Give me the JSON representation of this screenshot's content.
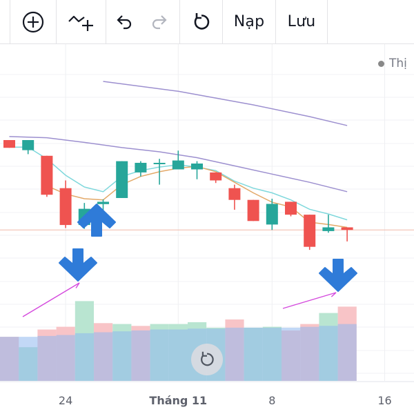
{
  "toolbar": {
    "load_label": "Nạp",
    "save_label": "Lưu"
  },
  "legend": {
    "label": "Thị"
  },
  "colors": {
    "up": "#26a69a",
    "down": "#ef5350",
    "ma_slow": "#9c8fcf",
    "ma_mid": "#7fd8dc",
    "ma_fast": "#e3a867",
    "vol_up": "#b9e5d1",
    "vol_down": "#f8c4c7",
    "vol_avg": "#8fb8ee",
    "arrow": "#2f7bd8",
    "annotation": "#d448dd"
  },
  "chart_data": {
    "type": "candlestick",
    "x_ticks": [
      {
        "label": "24",
        "bar": 3
      },
      {
        "label": "Tháng 11",
        "bar": 9,
        "bold": true
      },
      {
        "label": "8",
        "bar": 14
      },
      {
        "label": "16",
        "bar": 20
      }
    ],
    "y_range": [
      0,
      100
    ],
    "candles": [
      {
        "o": 75.0,
        "h": 75.0,
        "l": 71.7,
        "c": 71.7
      },
      {
        "o": 70.7,
        "h": 75.0,
        "l": 69.0,
        "c": 75.0
      },
      {
        "o": 68.3,
        "h": 68.3,
        "l": 50.8,
        "c": 51.7
      },
      {
        "o": 54.5,
        "h": 57.8,
        "l": 37.5,
        "c": 38.8
      },
      {
        "o": 38.8,
        "h": 48.2,
        "l": 37.2,
        "c": 45.7
      },
      {
        "o": 47.7,
        "h": 49.7,
        "l": 44.0,
        "c": 48.7
      },
      {
        "o": 50.3,
        "h": 66.0,
        "l": 50.3,
        "c": 66.0
      },
      {
        "o": 61.2,
        "h": 66.0,
        "l": 59.5,
        "c": 65.3
      },
      {
        "o": 65.3,
        "h": 67.0,
        "l": 56.0,
        "c": 65.3
      },
      {
        "o": 62.5,
        "h": 70.5,
        "l": 62.5,
        "c": 66.3
      },
      {
        "o": 62.5,
        "h": 66.0,
        "l": 58.3,
        "c": 65.0
      },
      {
        "o": 61.2,
        "h": 61.2,
        "l": 56.7,
        "c": 57.8
      },
      {
        "o": 54.5,
        "h": 56.0,
        "l": 45.3,
        "c": 49.5
      },
      {
        "o": 49.5,
        "h": 49.5,
        "l": 40.5,
        "c": 40.5
      },
      {
        "o": 39.0,
        "h": 50.0,
        "l": 36.7,
        "c": 47.8
      },
      {
        "o": 48.7,
        "h": 48.7,
        "l": 42.5,
        "c": 43.2
      },
      {
        "o": 43.2,
        "h": 43.2,
        "l": 28.2,
        "c": 29.5
      },
      {
        "o": 36.2,
        "h": 43.2,
        "l": 35.5,
        "c": 37.8
      },
      {
        "o": 37.8,
        "h": 37.8,
        "l": 31.8,
        "c": 36.7
      }
    ],
    "ma_slow": [
      null,
      null,
      null,
      null,
      null,
      null,
      null,
      null,
      null,
      null,
      null,
      null,
      null,
      null,
      null,
      null,
      null,
      null,
      null
    ],
    "ma_slow_line": [
      {
        "bar": 5.0,
        "v": 100.0
      },
      {
        "bar": 9.0,
        "v": 95.8
      },
      {
        "bar": 13.0,
        "v": 90.0
      },
      {
        "bar": 16.0,
        "v": 85.0
      },
      {
        "bar": 18.0,
        "v": 81.2
      }
    ],
    "ma_slow2_line": [
      {
        "bar": 0.0,
        "v": 76.5
      },
      {
        "bar": 2.0,
        "v": 76.0
      },
      {
        "bar": 4.0,
        "v": 74.0
      },
      {
        "bar": 6.0,
        "v": 71.8
      },
      {
        "bar": 8.0,
        "v": 70.0
      },
      {
        "bar": 10.0,
        "v": 67.5
      },
      {
        "bar": 12.0,
        "v": 64.0
      },
      {
        "bar": 14.0,
        "v": 60.5
      },
      {
        "bar": 16.0,
        "v": 57.0
      },
      {
        "bar": 18.0,
        "v": 53.0
      }
    ],
    "ma_mid_line": [
      {
        "bar": 0.0,
        "v": 72.0
      },
      {
        "bar": 1.0,
        "v": 72.0
      },
      {
        "bar": 2.0,
        "v": 67.0
      },
      {
        "bar": 3.0,
        "v": 60.0
      },
      {
        "bar": 4.0,
        "v": 55.0
      },
      {
        "bar": 5.0,
        "v": 53.0
      },
      {
        "bar": 6.0,
        "v": 59.5
      },
      {
        "bar": 7.0,
        "v": 62.0
      },
      {
        "bar": 8.0,
        "v": 63.5
      },
      {
        "bar": 9.0,
        "v": 64.5
      },
      {
        "bar": 10.0,
        "v": 63.5
      },
      {
        "bar": 11.0,
        "v": 62.0
      },
      {
        "bar": 12.0,
        "v": 57.5
      },
      {
        "bar": 13.0,
        "v": 54.5
      },
      {
        "bar": 14.0,
        "v": 52.5
      },
      {
        "bar": 15.0,
        "v": 49.5
      },
      {
        "bar": 16.0,
        "v": 45.5
      },
      {
        "bar": 17.0,
        "v": 43.5
      },
      {
        "bar": 18.0,
        "v": 41.0
      }
    ],
    "ma_fast_line": [
      {
        "bar": 2.0,
        "v": 55.5
      },
      {
        "bar": 3.0,
        "v": 52.0
      },
      {
        "bar": 4.0,
        "v": 50.0
      },
      {
        "bar": 5.0,
        "v": 49.5
      },
      {
        "bar": 6.0,
        "v": 56.0
      },
      {
        "bar": 7.0,
        "v": 59.5
      },
      {
        "bar": 8.0,
        "v": 61.5
      },
      {
        "bar": 9.0,
        "v": 63.0
      },
      {
        "bar": 10.0,
        "v": 63.8
      },
      {
        "bar": 11.0,
        "v": 61.5
      },
      {
        "bar": 12.0,
        "v": 57.0
      },
      {
        "bar": 13.0,
        "v": 52.5
      },
      {
        "bar": 14.0,
        "v": 48.5
      },
      {
        "bar": 15.0,
        "v": 46.5
      },
      {
        "bar": 16.0,
        "v": 40.0
      },
      {
        "bar": 17.0,
        "v": 39.0
      },
      {
        "bar": 18.0,
        "v": 37.8
      }
    ],
    "price_line": 36.7,
    "volume": {
      "range": [
        0,
        100
      ],
      "bars": [
        {
          "v": 60.8,
          "dir": "down"
        },
        {
          "v": 46.5,
          "dir": "up"
        },
        {
          "v": 70.9,
          "dir": "down"
        },
        {
          "v": 74.7,
          "dir": "down"
        },
        {
          "v": 110.1,
          "dir": "up"
        },
        {
          "v": 79.7,
          "dir": "down"
        },
        {
          "v": 78.5,
          "dir": "up"
        },
        {
          "v": 75.9,
          "dir": "down"
        },
        {
          "v": 78.5,
          "dir": "up"
        },
        {
          "v": 78.5,
          "dir": "up"
        },
        {
          "v": 81.0,
          "dir": "up"
        },
        {
          "v": 73.4,
          "dir": "up"
        },
        {
          "v": 84.8,
          "dir": "down"
        },
        {
          "v": 73.4,
          "dir": "up"
        },
        {
          "v": 74.7,
          "dir": "up"
        },
        {
          "v": 69.6,
          "dir": "down"
        },
        {
          "v": 78.5,
          "dir": "down"
        },
        {
          "v": 93.7,
          "dir": "up"
        },
        {
          "v": 102.5,
          "dir": "down"
        }
      ],
      "avg": [
        60.8,
        60.8,
        62.0,
        63.3,
        65.8,
        67.1,
        68.4,
        69.6,
        70.9,
        70.9,
        72.2,
        72.2,
        73.4,
        73.4,
        73.4,
        73.4,
        74.7,
        76.0,
        78.5
      ]
    }
  }
}
